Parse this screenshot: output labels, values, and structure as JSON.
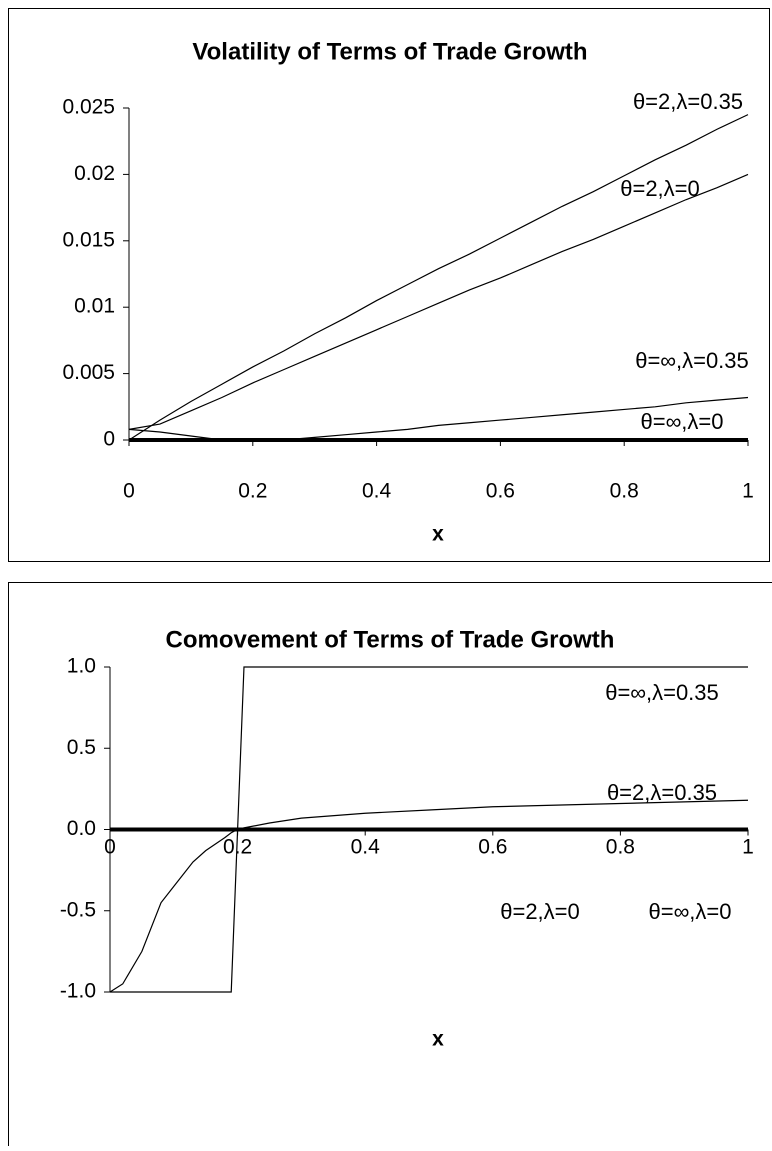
{
  "chart_data": [
    {
      "type": "line",
      "title": "Volatility of Terms of Trade Growth",
      "x_label": "x",
      "x": [
        0,
        0.05,
        0.1,
        0.15,
        0.2,
        0.25,
        0.3,
        0.35,
        0.4,
        0.45,
        0.5,
        0.55,
        0.6,
        0.65,
        0.7,
        0.75,
        0.8,
        0.85,
        0.9,
        0.95,
        1
      ],
      "xlim": [
        0,
        1
      ],
      "xticks": [
        0,
        0.2,
        0.4,
        0.6,
        0.8,
        1
      ],
      "ylim": [
        0,
        0.025
      ],
      "yticks": [
        0,
        0.005,
        0.01,
        0.015,
        0.02,
        0.025
      ],
      "series": [
        {
          "name": "θ=2,λ=0.35",
          "color": "#000000",
          "line_width": 1.2,
          "values": [
            0,
            0.0015,
            0.0029,
            0.0042,
            0.0055,
            0.0067,
            0.008,
            0.0092,
            0.0105,
            0.0117,
            0.0129,
            0.014,
            0.0152,
            0.0164,
            0.0176,
            0.0187,
            0.0199,
            0.0211,
            0.0222,
            0.0234,
            0.0245
          ]
        },
        {
          "name": "θ=2,λ=0",
          "color": "#000000",
          "line_width": 1.2,
          "values": [
            0.0008,
            0.0012,
            0.0022,
            0.0032,
            0.0043,
            0.0053,
            0.0063,
            0.0073,
            0.0083,
            0.0093,
            0.0103,
            0.0113,
            0.0122,
            0.0132,
            0.0142,
            0.0151,
            0.0161,
            0.0171,
            0.0181,
            0.019,
            0.02
          ]
        },
        {
          "name": "θ=∞,λ=0.35",
          "color": "#000000",
          "line_width": 1.2,
          "values": [
            0.0008,
            0.0006,
            0.0003,
            0,
            0,
            0,
            0.0002,
            0.0004,
            0.0006,
            0.0008,
            0.0011,
            0.0013,
            0.0015,
            0.0017,
            0.0019,
            0.0021,
            0.0023,
            0.0025,
            0.0028,
            0.003,
            0.0032
          ]
        },
        {
          "name": "θ=∞,λ=0",
          "color": "#000000",
          "line_width": 4,
          "values": [
            0,
            0,
            0,
            0,
            0,
            0,
            0,
            0,
            0,
            0,
            0,
            0,
            0,
            0,
            0,
            0,
            0,
            0,
            0,
            0,
            0
          ]
        }
      ]
    },
    {
      "type": "line",
      "title": "Comovement of Terms of Trade Growth",
      "x_label": "x",
      "x": [
        0,
        0.02,
        0.05,
        0.08,
        0.1,
        0.13,
        0.15,
        0.18,
        0.19,
        0.2,
        0.21,
        0.25,
        0.3,
        0.4,
        0.5,
        0.6,
        0.7,
        0.8,
        0.9,
        1
      ],
      "xlim": [
        0,
        1
      ],
      "xticks": [
        0,
        0.2,
        0.4,
        0.6,
        0.8,
        1
      ],
      "ylim": [
        -1,
        1
      ],
      "yticks": [
        {
          "value": -1,
          "label": "-1.0"
        },
        {
          "value": -0.5,
          "label": "-0.5"
        },
        {
          "value": 0,
          "label": "0.0"
        },
        {
          "value": 0.5,
          "label": "0.5"
        },
        {
          "value": 1,
          "label": "1.0"
        }
      ],
      "series": [
        {
          "name": "θ=∞,λ=0.35",
          "color": "#000000",
          "line_width": 1.2,
          "values": [
            -1,
            -1,
            -1,
            -1,
            -1,
            -1,
            -1,
            -1,
            -1,
            0,
            1,
            1,
            1,
            1,
            1,
            1,
            1,
            1,
            1,
            1
          ]
        },
        {
          "name": "θ=2,λ=0.35",
          "color": "#000000",
          "line_width": 1.2,
          "values": [
            -1,
            -0.95,
            -0.75,
            -0.45,
            -0.35,
            -0.2,
            -0.13,
            -0.05,
            -0.02,
            0,
            0.01,
            0.04,
            0.07,
            0.1,
            0.12,
            0.14,
            0.15,
            0.16,
            0.17,
            0.18
          ]
        },
        {
          "name": "θ=2,λ=0",
          "color": "#000000",
          "line_width": 4,
          "values": [
            0,
            0,
            0,
            0,
            0,
            0,
            0,
            0,
            0,
            0,
            0,
            0,
            0,
            0,
            0,
            0,
            0,
            0,
            0,
            0
          ]
        },
        {
          "name": "θ=∞,λ=0",
          "color": "#000000",
          "line_width": 4,
          "values": [
            0,
            0,
            0,
            0,
            0,
            0,
            0,
            0,
            0,
            0,
            0,
            0,
            0,
            0,
            0,
            0,
            0,
            0,
            0,
            0
          ]
        }
      ]
    }
  ]
}
